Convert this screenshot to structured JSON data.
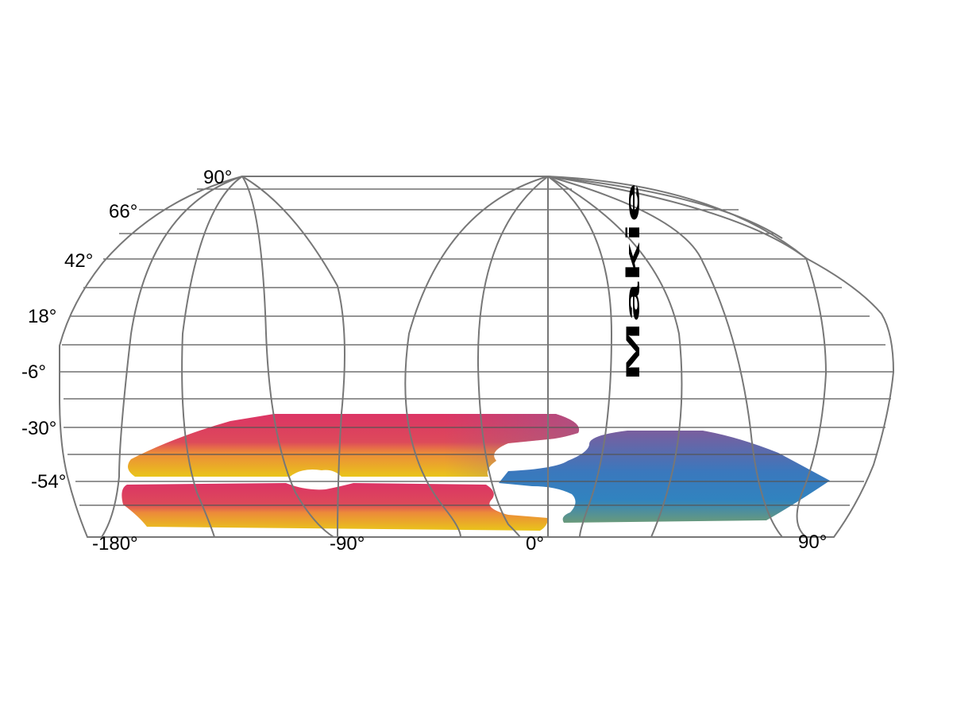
{
  "map": {
    "projection": "geographic grid with curved meridians",
    "latitude_labels": [
      "90°",
      "66°",
      "42°",
      "18°",
      "-6°",
      "-30°",
      "-54°"
    ],
    "longitude_labels": [
      "-180°",
      "-90°",
      "0°",
      "90°"
    ],
    "logo": {
      "text": "Makie",
      "orientation": "rotated 90° counter-clockwise",
      "color": "#2f2f2f"
    },
    "image_overlay": {
      "colors": {
        "pink": "#dc3465",
        "orange": "#ec7d3a",
        "yellow": "#e9c51a",
        "olive": "#a6ad3b",
        "purple": "#8d5f98",
        "blue": "#3183bf",
        "teal": "#5b9a8a"
      }
    },
    "gridline_color": "#777777"
  }
}
